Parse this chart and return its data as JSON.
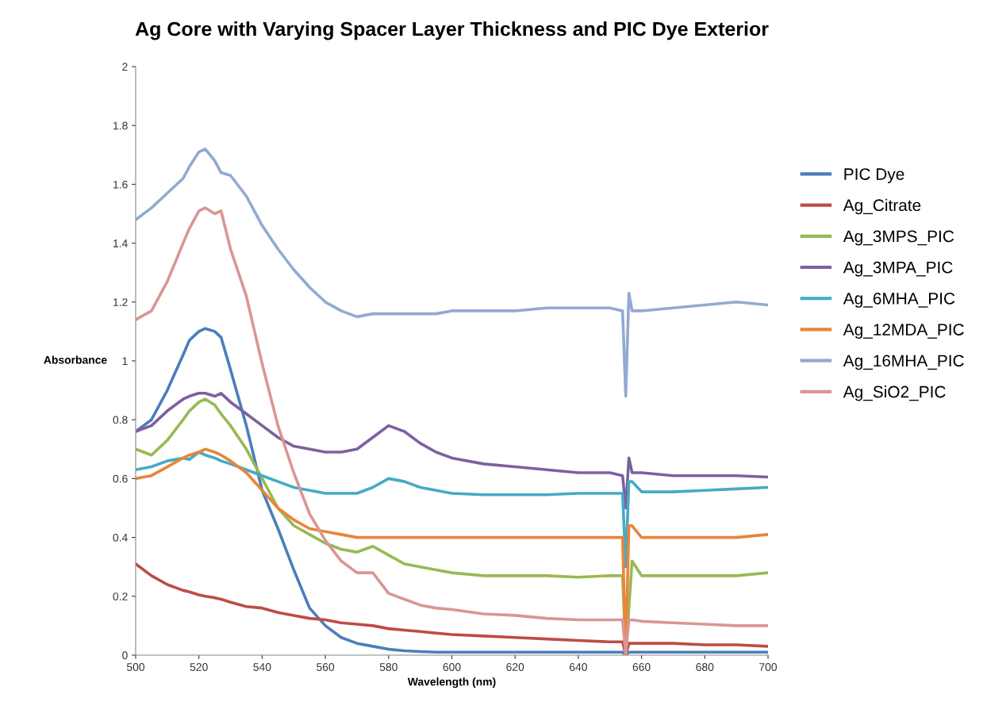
{
  "chart_data": {
    "type": "line",
    "title": "Ag Core with Varying Spacer Layer Thickness and PIC Dye Exterior",
    "xlabel": "Wavelength (nm)",
    "ylabel": "Absorbance",
    "x": [
      500,
      505,
      510,
      515,
      517,
      520,
      522,
      525,
      527,
      530,
      535,
      540,
      545,
      550,
      555,
      560,
      565,
      570,
      575,
      580,
      585,
      590,
      595,
      600,
      610,
      620,
      630,
      640,
      650,
      654,
      655,
      656,
      657,
      660,
      670,
      680,
      690,
      700
    ],
    "series": [
      {
        "name": "PIC Dye",
        "color": "#4a7ebb",
        "values": [
          0.76,
          0.8,
          0.9,
          1.02,
          1.07,
          1.1,
          1.11,
          1.1,
          1.08,
          0.97,
          0.78,
          0.56,
          0.43,
          0.29,
          0.16,
          0.1,
          0.06,
          0.04,
          0.03,
          0.02,
          0.015,
          0.012,
          0.01,
          0.01,
          0.01,
          0.01,
          0.01,
          0.01,
          0.01,
          0.01,
          0.0,
          0.01,
          0.01,
          0.01,
          0.01,
          0.01,
          0.01,
          0.01
        ]
      },
      {
        "name": "Ag_Citrate",
        "color": "#be4b48",
        "values": [
          0.31,
          0.27,
          0.24,
          0.22,
          0.215,
          0.205,
          0.2,
          0.195,
          0.19,
          0.18,
          0.165,
          0.16,
          0.145,
          0.135,
          0.125,
          0.12,
          0.11,
          0.105,
          0.1,
          0.09,
          0.085,
          0.08,
          0.075,
          0.07,
          0.065,
          0.06,
          0.055,
          0.05,
          0.045,
          0.045,
          0.0,
          0.04,
          0.04,
          0.04,
          0.04,
          0.035,
          0.035,
          0.03
        ]
      },
      {
        "name": "Ag_3MPS_PIC",
        "color": "#98b954",
        "values": [
          0.7,
          0.68,
          0.73,
          0.8,
          0.83,
          0.86,
          0.87,
          0.85,
          0.82,
          0.78,
          0.7,
          0.6,
          0.5,
          0.44,
          0.41,
          0.38,
          0.36,
          0.35,
          0.37,
          0.34,
          0.31,
          0.3,
          0.29,
          0.28,
          0.27,
          0.27,
          0.27,
          0.265,
          0.27,
          0.27,
          0.0,
          0.16,
          0.32,
          0.27,
          0.27,
          0.27,
          0.27,
          0.28
        ]
      },
      {
        "name": "Ag_3MPA_PIC",
        "color": "#7d60a0",
        "values": [
          0.76,
          0.78,
          0.83,
          0.87,
          0.88,
          0.89,
          0.89,
          0.88,
          0.89,
          0.86,
          0.82,
          0.78,
          0.74,
          0.71,
          0.7,
          0.69,
          0.69,
          0.7,
          0.74,
          0.78,
          0.76,
          0.72,
          0.69,
          0.67,
          0.65,
          0.64,
          0.63,
          0.62,
          0.62,
          0.61,
          0.5,
          0.67,
          0.62,
          0.62,
          0.61,
          0.61,
          0.61,
          0.605
        ]
      },
      {
        "name": "Ag_6MHA_PIC",
        "color": "#46aac5",
        "values": [
          0.63,
          0.64,
          0.66,
          0.67,
          0.665,
          0.69,
          0.68,
          0.67,
          0.66,
          0.65,
          0.63,
          0.61,
          0.59,
          0.57,
          0.56,
          0.55,
          0.55,
          0.55,
          0.57,
          0.6,
          0.59,
          0.57,
          0.56,
          0.55,
          0.545,
          0.545,
          0.545,
          0.55,
          0.55,
          0.55,
          0.3,
          0.59,
          0.59,
          0.555,
          0.555,
          0.56,
          0.565,
          0.57
        ]
      },
      {
        "name": "Ag_12MDA_PIC",
        "color": "#e8853c",
        "values": [
          0.6,
          0.61,
          0.64,
          0.67,
          0.68,
          0.69,
          0.7,
          0.69,
          0.68,
          0.66,
          0.62,
          0.56,
          0.5,
          0.46,
          0.43,
          0.42,
          0.41,
          0.4,
          0.4,
          0.4,
          0.4,
          0.4,
          0.4,
          0.4,
          0.4,
          0.4,
          0.4,
          0.4,
          0.4,
          0.4,
          0.0,
          0.44,
          0.44,
          0.4,
          0.4,
          0.4,
          0.4,
          0.41
        ]
      },
      {
        "name": "Ag_16MHA_PIC",
        "color": "#93a9d2",
        "values": [
          1.48,
          1.52,
          1.57,
          1.62,
          1.66,
          1.71,
          1.72,
          1.68,
          1.64,
          1.63,
          1.56,
          1.46,
          1.38,
          1.31,
          1.25,
          1.2,
          1.17,
          1.15,
          1.16,
          1.16,
          1.16,
          1.16,
          1.16,
          1.17,
          1.17,
          1.17,
          1.18,
          1.18,
          1.18,
          1.17,
          0.88,
          1.23,
          1.17,
          1.17,
          1.18,
          1.19,
          1.2,
          1.19
        ]
      },
      {
        "name": "Ag_SiO2_PIC",
        "color": "#d99694",
        "values": [
          1.14,
          1.17,
          1.27,
          1.4,
          1.45,
          1.51,
          1.52,
          1.5,
          1.51,
          1.38,
          1.22,
          0.99,
          0.78,
          0.62,
          0.48,
          0.39,
          0.32,
          0.28,
          0.28,
          0.21,
          0.19,
          0.17,
          0.16,
          0.155,
          0.14,
          0.135,
          0.125,
          0.12,
          0.12,
          0.12,
          0.0,
          0.12,
          0.12,
          0.115,
          0.11,
          0.105,
          0.1,
          0.1
        ]
      }
    ],
    "xlim": [
      500,
      700
    ],
    "xticks": [
      500,
      520,
      540,
      560,
      580,
      600,
      620,
      640,
      660,
      680,
      700
    ],
    "ylim": [
      0,
      2
    ],
    "yticks": [
      0,
      0.2,
      0.4,
      0.6,
      0.8,
      1,
      1.2,
      1.4,
      1.6,
      1.8,
      2
    ],
    "grid": false,
    "legend": "right",
    "marker": "none",
    "line_style": "solid"
  }
}
